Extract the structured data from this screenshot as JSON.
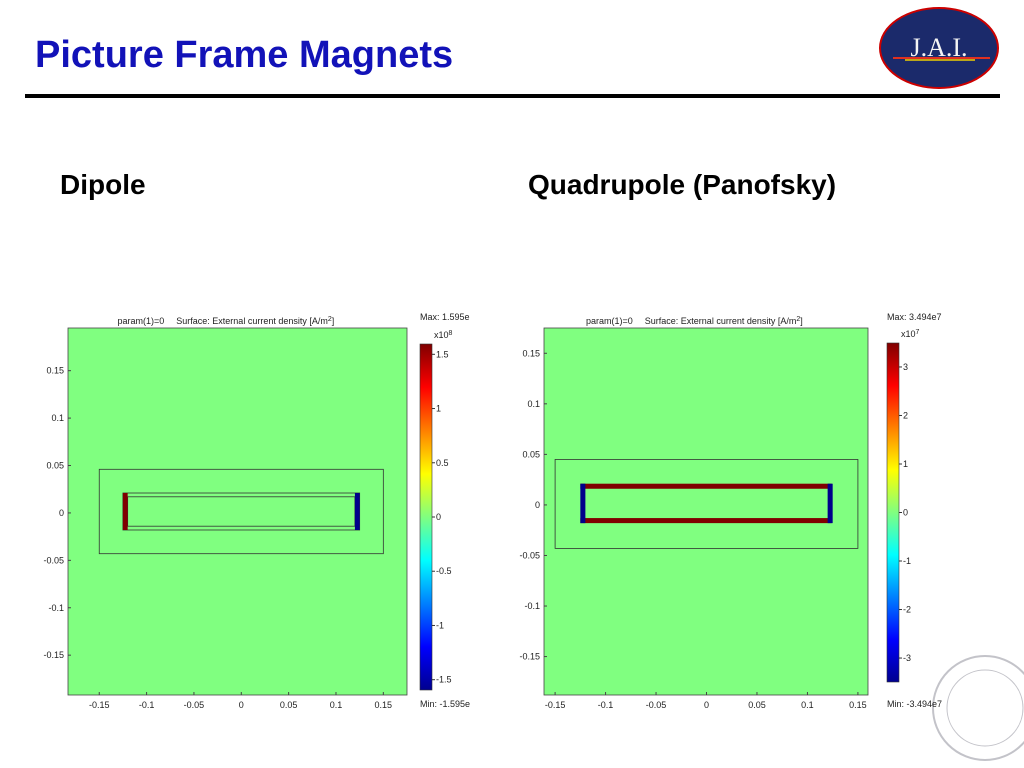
{
  "header": {
    "title": "Picture Frame Magnets",
    "logo": "J.A.I."
  },
  "panels": [
    {
      "heading": "Dipole",
      "chart_data": {
        "type": "surface",
        "title": [
          "param(1)=0",
          "Surface: External current density [A/m",
          "2",
          "]"
        ],
        "max_label": "Max: 1.595e",
        "min_label": "Min: -1.595e",
        "exponent": [
          "x10",
          "8"
        ],
        "xlim": [
          -0.183,
          0.175
        ],
        "ylim": [
          -0.192,
          0.195
        ],
        "xticks": [
          -0.15,
          -0.1,
          -0.05,
          0,
          0.05,
          0.1,
          0.15
        ],
        "yticks": [
          -0.15,
          -0.1,
          -0.05,
          0,
          0.05,
          0.1,
          0.15
        ],
        "clim": [
          -1.595,
          1.595
        ],
        "cticks": [
          -1.5,
          -1,
          -0.5,
          0,
          0.5,
          1,
          1.5
        ],
        "background": "#80ff80",
        "regions": [
          {
            "style": "outline",
            "x": [
              -0.15,
              0.15
            ],
            "y": [
              -0.043,
              0.046
            ],
            "color": "#333333"
          },
          {
            "style": "outline",
            "x": [
              -0.125,
              0.125
            ],
            "y": [
              -0.018,
              0.021
            ],
            "color": "#333333"
          },
          {
            "style": "outline",
            "x": [
              -0.12,
              0.12
            ],
            "y": [
              -0.014,
              0.017
            ],
            "color": "#333333"
          },
          {
            "style": "fill",
            "x": [
              -0.125,
              -0.12
            ],
            "y": [
              -0.018,
              0.021
            ],
            "color": "#800000"
          },
          {
            "style": "fill",
            "x": [
              0.12,
              0.125
            ],
            "y": [
              -0.018,
              0.021
            ],
            "color": "#00008b"
          }
        ]
      }
    },
    {
      "heading": "Quadrupole (Panofsky)",
      "chart_data": {
        "type": "surface",
        "title": [
          "param(1)=0",
          "Surface: External current density [A/m",
          "2",
          "]"
        ],
        "max_label": "Max: 3.494e7",
        "min_label": "Min: -3.494e7",
        "exponent": [
          "x10",
          "7"
        ],
        "xlim": [
          -0.161,
          0.16
        ],
        "ylim": [
          -0.188,
          0.175
        ],
        "xticks": [
          -0.15,
          -0.1,
          -0.05,
          0,
          0.05,
          0.1,
          0.15
        ],
        "yticks": [
          -0.15,
          -0.1,
          -0.05,
          0,
          0.05,
          0.1,
          0.15
        ],
        "clim": [
          -3.494,
          3.494
        ],
        "cticks": [
          -3,
          -2,
          -1,
          0,
          1,
          2,
          3
        ],
        "background": "#80ff80",
        "regions": [
          {
            "style": "outline",
            "x": [
              -0.15,
              0.15
            ],
            "y": [
              -0.043,
              0.045
            ],
            "color": "#333333"
          },
          {
            "style": "fill",
            "x": [
              -0.125,
              0.124
            ],
            "y": [
              0.016,
              0.021
            ],
            "color": "#800000"
          },
          {
            "style": "fill",
            "x": [
              -0.125,
              0.124
            ],
            "y": [
              -0.018,
              -0.013
            ],
            "color": "#800000"
          },
          {
            "style": "fill",
            "x": [
              -0.125,
              -0.12
            ],
            "y": [
              -0.018,
              0.021
            ],
            "color": "#00008b"
          },
          {
            "style": "fill",
            "x": [
              0.12,
              0.125
            ],
            "y": [
              -0.018,
              0.021
            ],
            "color": "#00008b"
          }
        ]
      }
    }
  ]
}
